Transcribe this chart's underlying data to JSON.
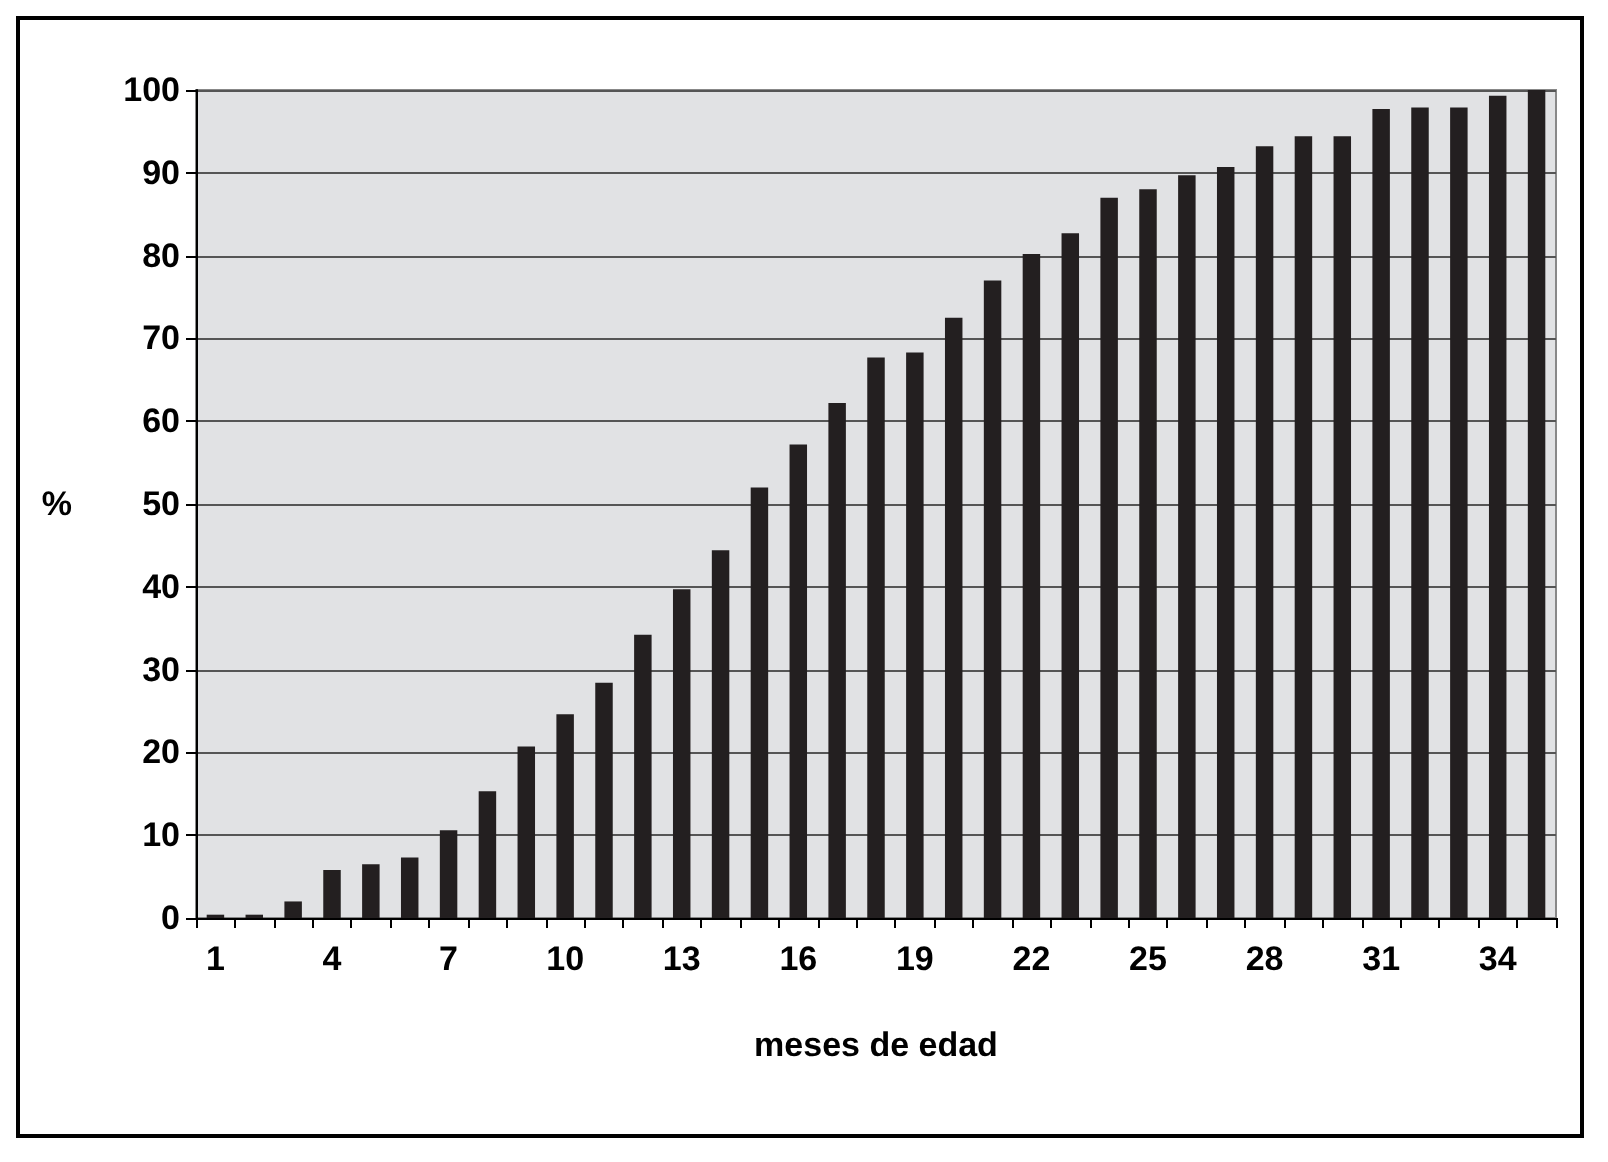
{
  "chart_data": {
    "type": "bar",
    "xlabel": "meses de edad",
    "ylabel": "%",
    "categories": [
      "1",
      null,
      null,
      "4",
      null,
      null,
      "7",
      null,
      null,
      "10",
      null,
      null,
      "13",
      null,
      null,
      "16",
      null,
      null,
      "19",
      null,
      null,
      "22",
      null,
      null,
      "25",
      null,
      null,
      "28",
      null,
      null,
      "31",
      null,
      null,
      "34",
      null
    ],
    "values": [
      0.4,
      0.4,
      2,
      5.8,
      6.5,
      7.3,
      10.6,
      15.3,
      20.7,
      24.6,
      28.4,
      34.2,
      39.7,
      44.4,
      52,
      57.2,
      62.2,
      67.7,
      68.3,
      72.5,
      77,
      80.2,
      82.7,
      87,
      88,
      89.7,
      90.7,
      93.2,
      94.4,
      94.4,
      97.7,
      97.9,
      97.9,
      99.3,
      100
    ],
    "color": "#231f20",
    "ylim": [
      0,
      100
    ],
    "yticks": [
      0,
      10,
      20,
      30,
      40,
      50,
      60,
      70,
      80,
      90,
      100
    ],
    "grid": "y"
  }
}
